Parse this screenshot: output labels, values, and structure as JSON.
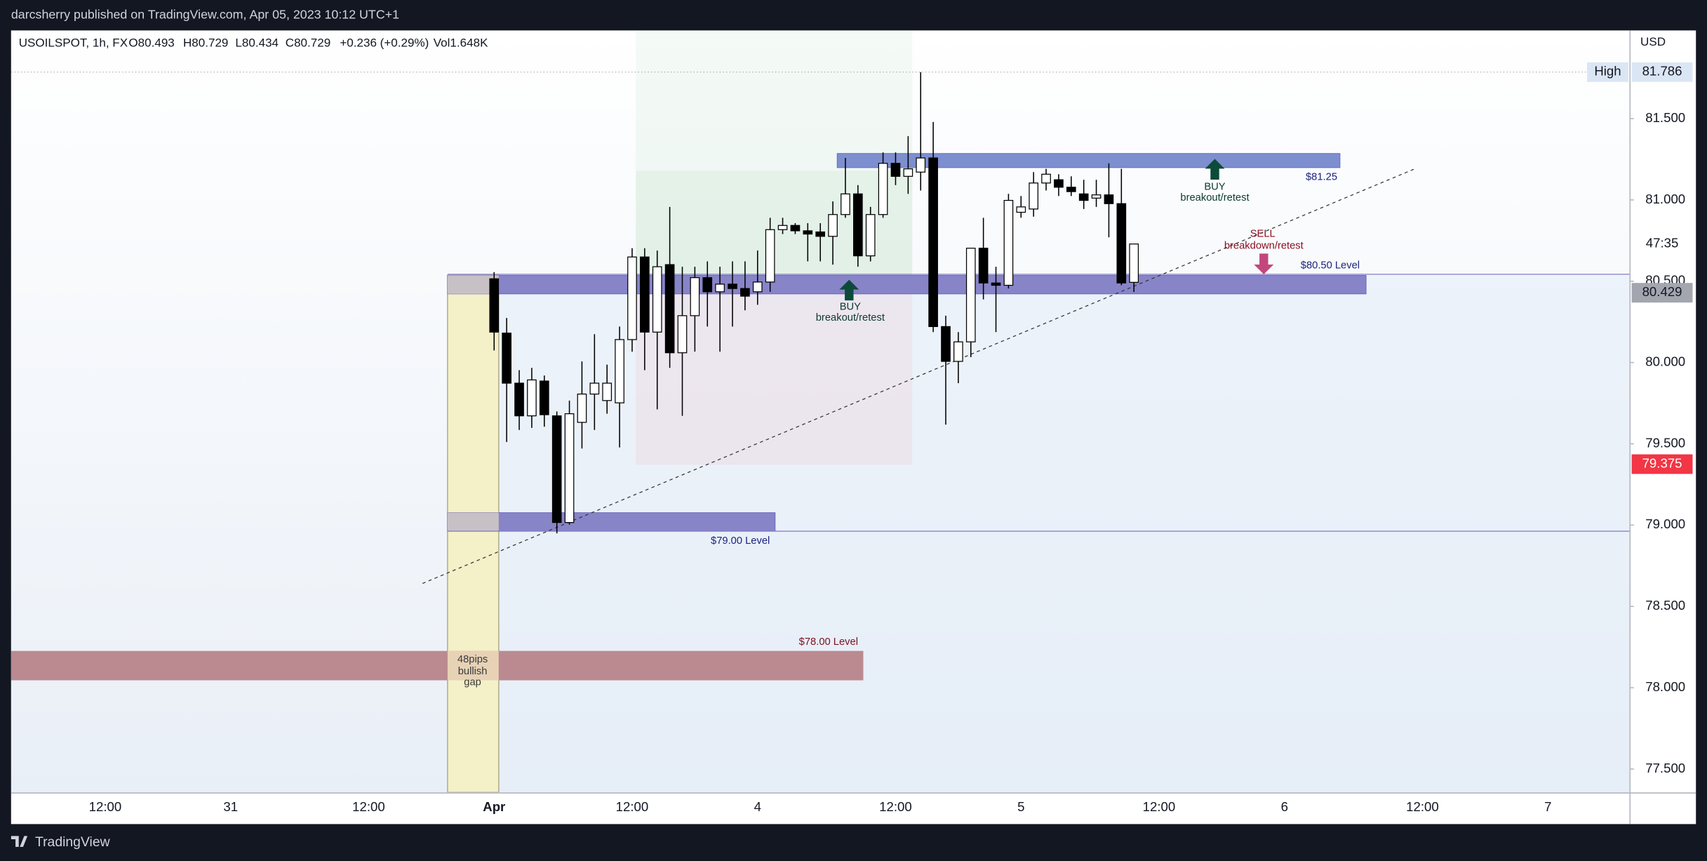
{
  "top_bar": {
    "text": "darcsherry published on TradingView.com, Apr 05, 2023 10:12 UTC+1"
  },
  "footer": {
    "logo": "TradingView"
  },
  "chart_data": {
    "type": "candlestick",
    "legend_text": [
      "USOILSPOT, 1h, FX",
      "O80.493",
      "H80.729",
      "L80.434",
      "C80.729",
      "+0.236 (+0.29%)",
      "Vol1.648K"
    ],
    "currency": "USD",
    "categories": [
      null,
      null,
      null,
      null,
      null,
      null,
      null,
      "12:00",
      null,
      null,
      null,
      null,
      null,
      null,
      null,
      null,
      null,
      "31",
      null,
      null,
      null,
      null,
      null,
      null,
      null,
      null,
      null,
      null,
      "12:00",
      null,
      null,
      null,
      null,
      null,
      null,
      null,
      null,
      null,
      "Apr",
      null,
      null,
      null,
      null,
      null,
      null,
      null,
      null,
      null,
      null,
      "12:00",
      null,
      null,
      null,
      null,
      null,
      null,
      null,
      null,
      null,
      "4",
      null,
      null,
      null,
      null,
      null,
      null,
      null,
      null,
      null,
      null,
      "12:00",
      null,
      null,
      null,
      null,
      null,
      null,
      null,
      null,
      null,
      "5",
      null,
      null,
      null,
      null,
      null,
      null,
      null,
      null,
      null,
      null,
      "12:00",
      null,
      null,
      null,
      null,
      null,
      null,
      null,
      null,
      null,
      "6",
      null,
      null,
      null,
      null,
      null,
      null,
      null,
      null,
      null,
      null,
      "12:00",
      null,
      null,
      null,
      null,
      null,
      null,
      null,
      null,
      null,
      "7",
      null,
      null,
      null,
      null,
      null,
      null
    ],
    "open": [
      null,
      null,
      null,
      null,
      null,
      null,
      null,
      null,
      null,
      null,
      null,
      null,
      null,
      null,
      null,
      null,
      null,
      null,
      null,
      null,
      null,
      null,
      null,
      null,
      null,
      null,
      null,
      null,
      null,
      null,
      null,
      null,
      null,
      null,
      null,
      null,
      null,
      null,
      80.515,
      80.181,
      79.873,
      79.672,
      79.886,
      79.672,
      79.016,
      79.632,
      79.806,
      79.766,
      79.752,
      80.141,
      80.649,
      80.187,
      80.602,
      80.06,
      80.288,
      80.522,
      80.435,
      80.482,
      80.455,
      80.435,
      80.495,
      80.817,
      80.843,
      80.81,
      80.803,
      80.776,
      80.91,
      81.037,
      80.656,
      80.91,
      81.225,
      81.145,
      81.171,
      81.258,
      80.221,
      80.007,
      80.127,
      80.703,
      80.489,
      80.475,
      80.924,
      80.944,
      81.104,
      81.124,
      81.078,
      81.037,
      81.011,
      81.031,
      80.977,
      80.493,
      null,
      null,
      null,
      null,
      null,
      null,
      null,
      null,
      null,
      null,
      null,
      null,
      null,
      null,
      null,
      null,
      null,
      null,
      null,
      null,
      null,
      null,
      null,
      null,
      null,
      null,
      null,
      null,
      null,
      null,
      null,
      null,
      null,
      null,
      null,
      null,
      null,
      null,
      null
    ],
    "high": [
      null,
      null,
      null,
      null,
      null,
      null,
      null,
      null,
      null,
      null,
      null,
      null,
      null,
      null,
      null,
      null,
      null,
      null,
      null,
      null,
      null,
      null,
      null,
      null,
      null,
      null,
      null,
      null,
      null,
      null,
      null,
      null,
      null,
      null,
      null,
      null,
      null,
      null,
      80.556,
      80.274,
      79.953,
      79.967,
      79.92,
      79.699,
      79.766,
      80.007,
      80.174,
      79.987,
      80.221,
      80.703,
      80.703,
      80.689,
      80.957,
      80.589,
      80.589,
      80.622,
      80.589,
      80.622,
      80.622,
      80.689,
      80.89,
      80.89,
      80.857,
      80.857,
      80.857,
      80.991,
      81.258,
      81.091,
      80.957,
      81.292,
      81.292,
      81.392,
      81.786,
      81.479,
      80.288,
      80.187,
      80.703,
      80.89,
      80.589,
      81.037,
      81.024,
      81.171,
      81.191,
      81.158,
      81.145,
      81.124,
      81.124,
      81.225,
      81.191,
      80.729,
      null,
      null,
      null,
      null,
      null,
      null,
      null,
      null,
      null,
      null,
      null,
      null,
      null,
      null,
      null,
      null,
      null,
      null,
      null,
      null,
      null,
      null,
      null,
      null,
      null,
      null,
      null,
      null,
      null,
      null,
      null,
      null,
      null,
      null,
      null,
      null,
      null,
      null,
      null
    ],
    "low": [
      null,
      null,
      null,
      null,
      null,
      null,
      null,
      null,
      null,
      null,
      null,
      null,
      null,
      null,
      null,
      null,
      null,
      null,
      null,
      null,
      null,
      null,
      null,
      null,
      null,
      null,
      null,
      null,
      null,
      null,
      null,
      null,
      null,
      null,
      null,
      null,
      null,
      null,
      80.074,
      79.511,
      79.585,
      79.598,
      79.605,
      78.949,
      79.003,
      79.471,
      79.585,
      79.685,
      79.478,
      80.067,
      79.953,
      79.712,
      79.967,
      79.672,
      80.067,
      80.221,
      80.067,
      80.221,
      80.321,
      80.355,
      80.435,
      80.79,
      80.79,
      80.622,
      80.622,
      80.602,
      80.89,
      80.589,
      80.622,
      80.89,
      81.091,
      81.037,
      81.058,
      80.187,
      79.618,
      79.873,
      80.033,
      80.388,
      80.187,
      80.455,
      80.89,
      80.897,
      81.058,
      81.024,
      81.024,
      80.944,
      80.957,
      80.77,
      80.475,
      80.434,
      null,
      null,
      null,
      null,
      null,
      null,
      null,
      null,
      null,
      null,
      null,
      null,
      null,
      null,
      null,
      null,
      null,
      null,
      null,
      null,
      null,
      null,
      null,
      null,
      null,
      null,
      null,
      null,
      null,
      null,
      null,
      null,
      null,
      null,
      null,
      null,
      null,
      null,
      null
    ],
    "close": [
      null,
      null,
      null,
      null,
      null,
      null,
      null,
      null,
      null,
      null,
      null,
      null,
      null,
      null,
      null,
      null,
      null,
      null,
      null,
      null,
      null,
      null,
      null,
      null,
      null,
      null,
      null,
      null,
      null,
      null,
      null,
      null,
      null,
      null,
      null,
      null,
      null,
      null,
      80.187,
      79.873,
      79.672,
      79.893,
      79.679,
      79.016,
      79.685,
      79.806,
      79.873,
      79.873,
      80.141,
      80.649,
      80.187,
      80.589,
      80.06,
      80.288,
      80.522,
      80.435,
      80.482,
      80.455,
      80.408,
      80.495,
      80.817,
      80.843,
      80.81,
      80.79,
      80.776,
      80.91,
      81.037,
      80.656,
      80.91,
      81.225,
      81.145,
      81.191,
      81.258,
      80.221,
      80.007,
      80.127,
      80.703,
      80.489,
      80.475,
      80.997,
      80.957,
      81.104,
      81.158,
      81.078,
      81.051,
      80.997,
      81.031,
      80.977,
      80.489,
      80.729,
      null,
      null,
      null,
      null,
      null,
      null,
      null,
      null,
      null,
      null,
      null,
      null,
      null,
      null,
      null,
      null,
      null,
      null,
      null,
      null,
      null,
      null,
      null,
      null,
      null,
      null,
      null,
      null,
      null,
      null,
      null,
      null,
      null,
      null,
      null,
      null,
      null,
      null,
      null
    ],
    "up_color": "#ffffff",
    "down_color": "#000000",
    "ylim": [
      77.356,
      82.042
    ],
    "yticks": [
      {
        "value": 77.5,
        "label": "77.500"
      },
      {
        "value": 78,
        "label": "78.000"
      },
      {
        "value": 78.5,
        "label": "78.500"
      },
      {
        "value": 79,
        "label": "79.000"
      },
      {
        "value": 79.5,
        "label": "79.500"
      },
      {
        "value": 80,
        "label": "80.000"
      },
      {
        "value": 80.5,
        "label": "80.500"
      },
      {
        "value": 81,
        "label": "81.000"
      },
      {
        "value": 81.5,
        "label": "81.500"
      }
    ],
    "price_labels": [
      {
        "value": 81.786,
        "label": "81.786",
        "tag": "High",
        "color": "#dbe6f5",
        "text_color": "#131722"
      },
      {
        "value": 80.429,
        "label": "80.429",
        "color": "#a3a6af",
        "text_color": "#131722"
      },
      {
        "value": 79.375,
        "label": "79.375",
        "color": "#f23645",
        "text_color": "#ffffff"
      }
    ],
    "countdown": "47:35",
    "annotations": [
      "$81.25",
      "$80.50 Level",
      "$79.00 Level",
      "$78.00 Level",
      "BUY",
      "breakout/retest",
      "BUY",
      "breakout/retest",
      "SELL",
      "breakdown/retest",
      "48pips",
      "bullish",
      "gap"
    ]
  }
}
